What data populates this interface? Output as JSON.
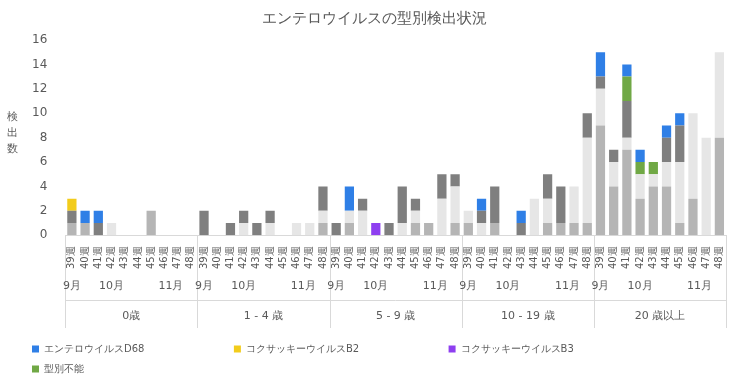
{
  "chart_data": {
    "type": "bar",
    "title": "エンテロウイルスの型別検出状況",
    "y_label": "検出数",
    "stacked": true,
    "grid": false,
    "legend": "bottom",
    "categories": [
      "39週",
      "40週",
      "41週",
      "42週",
      "43週",
      "44週",
      "45週",
      "46週",
      "47週",
      "48週",
      "39週",
      "40週",
      "41週",
      "42週",
      "43週",
      "44週",
      "45週",
      "46週",
      "47週",
      "48週",
      "39週",
      "40週",
      "41週",
      "42週",
      "43週",
      "44週",
      "45週",
      "46週",
      "47週",
      "48週",
      "39週",
      "40週",
      "41週",
      "42週",
      "43週",
      "44週",
      "45週",
      "46週",
      "47週",
      "48週",
      "39週",
      "40週",
      "41週",
      "42週",
      "43週",
      "44週",
      "45週",
      "46週",
      "47週",
      "48週"
    ],
    "category_groups": [
      {
        "label": "0歳",
        "months": [
          {
            "label": "9月",
            "count": 1
          },
          {
            "label": "10月",
            "count": 5
          },
          {
            "label": "11月",
            "count": 4
          }
        ]
      },
      {
        "label": "1 - 4 歳",
        "months": [
          {
            "label": "9月",
            "count": 1
          },
          {
            "label": "10月",
            "count": 5
          },
          {
            "label": "11月",
            "count": 4
          }
        ]
      },
      {
        "label": "5 - 9 歳",
        "months": [
          {
            "label": "9月",
            "count": 1
          },
          {
            "label": "10月",
            "count": 5
          },
          {
            "label": "11月",
            "count": 4
          }
        ]
      },
      {
        "label": "10 - 19 歳",
        "months": [
          {
            "label": "9月",
            "count": 1
          },
          {
            "label": "10月",
            "count": 5
          },
          {
            "label": "11月",
            "count": 4
          }
        ]
      },
      {
        "label": "20 歳以上",
        "months": [
          {
            "label": "9月",
            "count": 1
          },
          {
            "label": "10月",
            "count": 5
          },
          {
            "label": "11月",
            "count": 4
          }
        ]
      }
    ],
    "ylim": [
      0,
      16
    ],
    "yticks": [
      0,
      2,
      4,
      6,
      8,
      10,
      12,
      14,
      16
    ],
    "series": [
      {
        "name": null,
        "color": "#b5b5b5",
        "values": [
          1,
          1,
          0,
          0,
          0,
          0,
          2,
          0,
          0,
          0,
          0,
          0,
          0,
          0,
          0,
          0,
          0,
          0,
          0,
          1,
          0,
          1,
          0,
          0,
          0,
          0,
          1,
          1,
          0,
          1,
          1,
          0,
          1,
          0,
          0,
          0,
          1,
          1,
          1,
          1,
          9,
          4,
          7,
          3,
          4,
          4,
          1,
          3,
          0,
          8
        ]
      },
      {
        "name": null,
        "color": "#e6e6e6",
        "values": [
          0,
          0,
          0,
          1,
          0,
          0,
          0,
          0,
          0,
          0,
          0,
          0,
          0,
          1,
          0,
          1,
          0,
          1,
          1,
          1,
          0,
          1,
          2,
          0,
          0,
          1,
          1,
          0,
          3,
          3,
          1,
          1,
          0,
          0,
          0,
          3,
          2,
          0,
          3,
          7,
          3,
          2,
          1,
          2,
          1,
          2,
          5,
          7,
          8,
          7
        ]
      },
      {
        "name": null,
        "color": "#7f7f7f",
        "values": [
          1,
          0,
          1,
          0,
          0,
          0,
          0,
          0,
          0,
          0,
          2,
          0,
          1,
          1,
          1,
          1,
          0,
          0,
          0,
          2,
          1,
          0,
          1,
          0,
          1,
          3,
          1,
          0,
          2,
          1,
          0,
          1,
          3,
          0,
          1,
          0,
          2,
          3,
          0,
          2,
          1,
          1,
          3,
          0,
          0,
          2,
          3,
          0,
          0,
          0
        ]
      },
      {
        "name": "型別不能",
        "color": "#70a845",
        "values": [
          0,
          0,
          0,
          0,
          0,
          0,
          0,
          0,
          0,
          0,
          0,
          0,
          0,
          0,
          0,
          0,
          0,
          0,
          0,
          0,
          0,
          0,
          0,
          0,
          0,
          0,
          0,
          0,
          0,
          0,
          0,
          0,
          0,
          0,
          0,
          0,
          0,
          0,
          0,
          0,
          0,
          0,
          2,
          1,
          1,
          0,
          0,
          0,
          0,
          0
        ]
      },
      {
        "name": "コクサッキーウイルスB3",
        "color": "#8e3ff0",
        "values": [
          0,
          0,
          0,
          0,
          0,
          0,
          0,
          0,
          0,
          0,
          0,
          0,
          0,
          0,
          0,
          0,
          0,
          0,
          0,
          0,
          0,
          0,
          0,
          1,
          0,
          0,
          0,
          0,
          0,
          0,
          0,
          0,
          0,
          0,
          0,
          0,
          0,
          0,
          0,
          0,
          0,
          0,
          0,
          0,
          0,
          0,
          0,
          0,
          0,
          0
        ]
      },
      {
        "name": "コクサッキーウイルスB2",
        "color": "#f2cc1c",
        "values": [
          1,
          0,
          0,
          0,
          0,
          0,
          0,
          0,
          0,
          0,
          0,
          0,
          0,
          0,
          0,
          0,
          0,
          0,
          0,
          0,
          0,
          0,
          0,
          0,
          0,
          0,
          0,
          0,
          0,
          0,
          0,
          0,
          0,
          0,
          0,
          0,
          0,
          0,
          0,
          0,
          0,
          0,
          0,
          0,
          0,
          0,
          0,
          0,
          0,
          0
        ]
      },
      {
        "name": "エンテロウイルスD68",
        "color": "#2f7fe6",
        "values": [
          0,
          1,
          1,
          0,
          0,
          0,
          0,
          0,
          0,
          0,
          0,
          0,
          0,
          0,
          0,
          0,
          0,
          0,
          0,
          0,
          0,
          2,
          0,
          0,
          0,
          0,
          0,
          0,
          0,
          0,
          0,
          1,
          0,
          0,
          1,
          0,
          0,
          0,
          0,
          0,
          2,
          0,
          1,
          1,
          0,
          1,
          1,
          0,
          0,
          0
        ]
      }
    ]
  }
}
